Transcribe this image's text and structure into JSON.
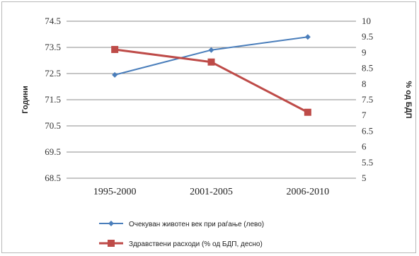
{
  "chart_data": {
    "type": "line",
    "categories": [
      "1995-2000",
      "2001-2005",
      "2006-2010"
    ],
    "y_left": {
      "label": "Години",
      "range": [
        68.5,
        74.5
      ],
      "ticks": [
        "74.5",
        "73.5",
        "72.5",
        "71.5",
        "70.5",
        "69.5",
        "68.5"
      ]
    },
    "y_right": {
      "label": "% од БДП",
      "range": [
        5,
        10
      ],
      "ticks": [
        "10",
        "9.5",
        "9",
        "8.5",
        "8",
        "7.5",
        "7",
        "6.5",
        "6",
        "5.5",
        "5"
      ]
    },
    "series": [
      {
        "name": "Очекуван животен век при раѓање (лево)",
        "axis": "left",
        "color": "#4a7ebb",
        "marker": "diamond",
        "values": [
          72.45,
          73.4,
          73.9
        ]
      },
      {
        "name": "Здравствени расходи (% од БДП, десно)",
        "axis": "right",
        "color": "#be4b48",
        "marker": "square",
        "values": [
          9.1,
          8.7,
          7.1
        ]
      }
    ],
    "grid": true,
    "legend_position": "bottom"
  }
}
